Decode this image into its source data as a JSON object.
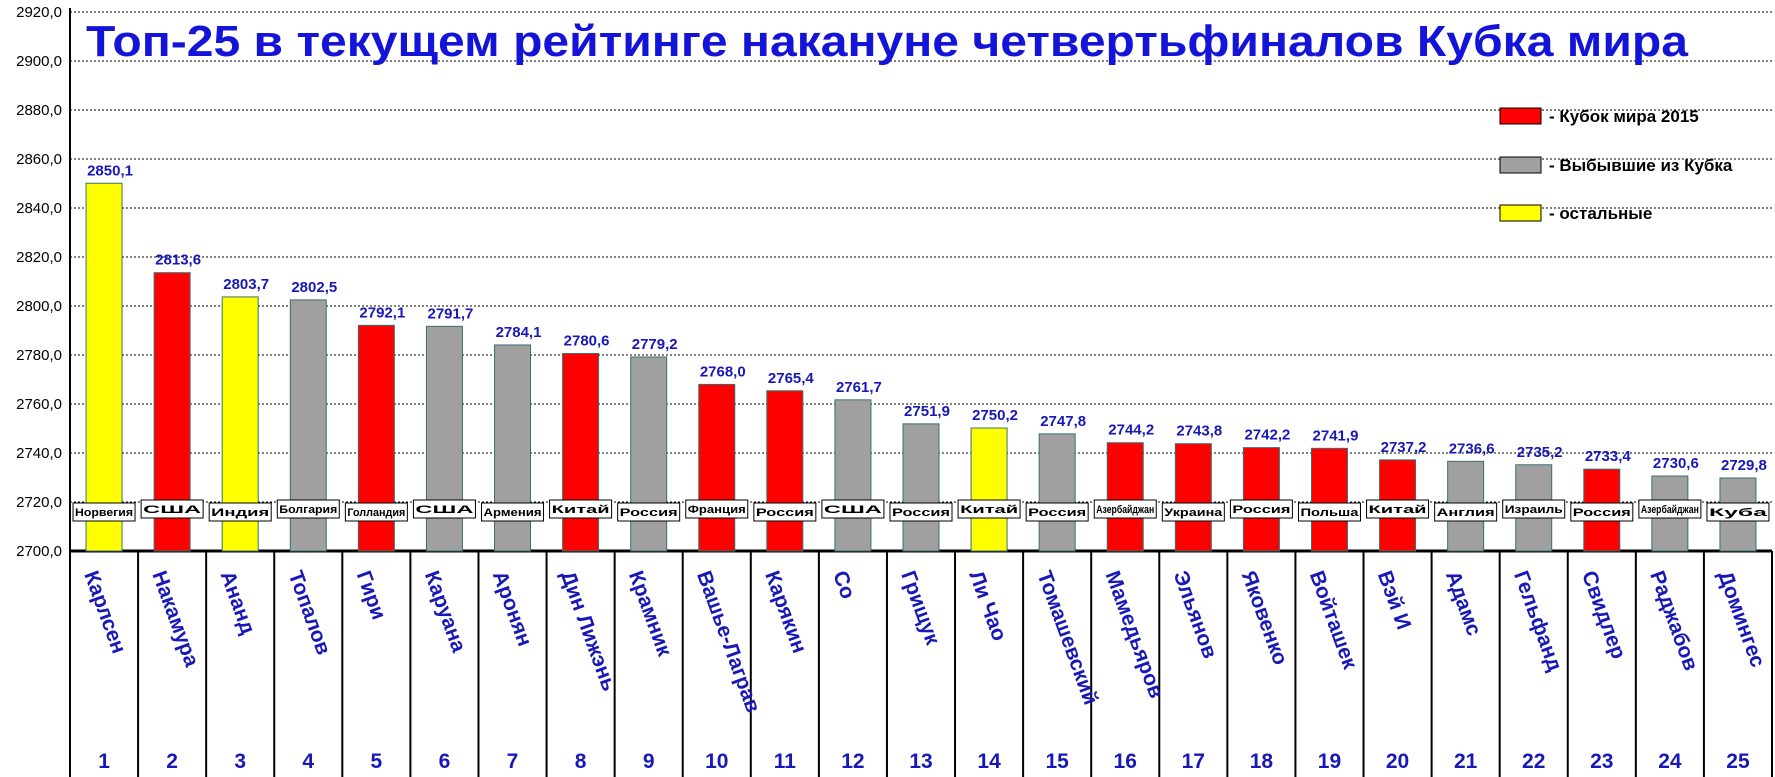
{
  "chart_data": {
    "type": "bar",
    "title": "Топ-25 в текущем рейтинге накануне четвертьфиналов Кубка мира",
    "ylim": [
      2700,
      2920
    ],
    "ytick_step": 20,
    "grid": true,
    "legend_position": "top-right",
    "legend": [
      {
        "key": "cup",
        "label": "- Кубок мира 2015",
        "color": "#ff0000"
      },
      {
        "key": "out",
        "label": "- Выбывшие из Кубка",
        "color": "#a0a0a0"
      },
      {
        "key": "other",
        "label": "- остальные",
        "color": "#ffff00"
      }
    ],
    "ranks": [
      "1",
      "2",
      "3",
      "4",
      "5",
      "6",
      "7",
      "8",
      "9",
      "10",
      "11",
      "12",
      "13",
      "14",
      "15",
      "16",
      "17",
      "18",
      "19",
      "20",
      "21",
      "22",
      "23",
      "24",
      "25"
    ],
    "names": [
      "Карлсен",
      "Накамура",
      "Ананд",
      "Топалов",
      "Гири",
      "Каруана",
      "Аронян",
      "Дин Лижэнь",
      "Крамник",
      "Вашье-Лаграв",
      "Карякин",
      "Со",
      "Грищук",
      "Ли Чао",
      "Томашевский",
      "Мамедьяров",
      "Эльянов",
      "Яковенко",
      "Войташек",
      "Вэй И",
      "Адамс",
      "Гельфанд",
      "Свидлер",
      "Раджабов",
      "Домингес"
    ],
    "countries": [
      "Норвегия",
      "США",
      "Индия",
      "Болгария",
      "Голландия",
      "США",
      "Армения",
      "Китай",
      "Россия",
      "Франция",
      "Россия",
      "США",
      "Россия",
      "Китай",
      "Россия",
      "Азербайджан",
      "Украина",
      "Россия",
      "Польша",
      "Китай",
      "Англия",
      "Израиль",
      "Россия",
      "Азербайджан",
      "Куба"
    ],
    "values": [
      2850.1,
      2813.6,
      2803.7,
      2802.5,
      2792.1,
      2791.7,
      2784.1,
      2780.6,
      2779.2,
      2768.0,
      2765.4,
      2761.7,
      2751.9,
      2750.2,
      2747.8,
      2744.2,
      2743.8,
      2742.2,
      2741.9,
      2737.2,
      2736.6,
      2735.2,
      2733.4,
      2730.6,
      2729.8
    ],
    "value_labels": [
      "2850,1",
      "2813,6",
      "2803,7",
      "2802,5",
      "2792,1",
      "2791,7",
      "2784,1",
      "2780,6",
      "2779,2",
      "2768,0",
      "2765,4",
      "2761,7",
      "2751,9",
      "2750,2",
      "2747,8",
      "2744,2",
      "2743,8",
      "2742,2",
      "2741,9",
      "2737,2",
      "2736,6",
      "2735,2",
      "2733,4",
      "2730,6",
      "2729,8"
    ],
    "groups": [
      "other",
      "cup",
      "other",
      "out",
      "cup",
      "out",
      "out",
      "cup",
      "out",
      "cup",
      "cup",
      "out",
      "out",
      "other",
      "out",
      "cup",
      "cup",
      "cup",
      "cup",
      "cup",
      "out",
      "out",
      "cup",
      "out",
      "out"
    ]
  }
}
